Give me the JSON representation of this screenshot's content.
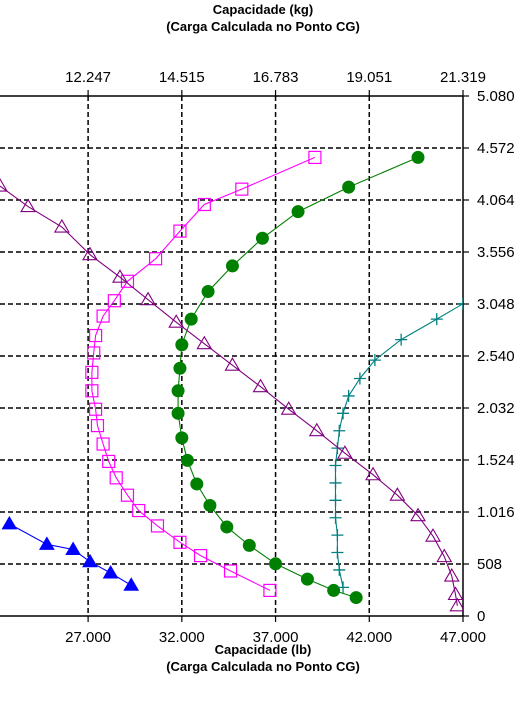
{
  "top_title": {
    "line1": "Capacidade (kg)",
    "line2": "(Carga Calculada no Ponto CG)"
  },
  "bottom_title": {
    "line1": "Capacidade (lb)",
    "line2": "(Carga Calculada no Ponto CG)"
  },
  "chart_data": {
    "type": "scatter",
    "grid": true,
    "x_bottom": {
      "label": "Capacidade (lb)\n(Carga Calculada no Ponto CG)",
      "ticks": [
        27000,
        32000,
        37000,
        42000,
        47000
      ],
      "tick_labels": [
        "27.000",
        "32.000",
        "37.000",
        "42.000",
        "47.000"
      ],
      "range": [
        22300,
        47000
      ]
    },
    "x_top": {
      "label": "Capacidade (kg)\n(Carga Calculada no Ponto CG)",
      "tick_labels": [
        "12.247",
        "14.515",
        "16.783",
        "19.051",
        "21.319"
      ]
    },
    "y_right": {
      "ticks": [
        0,
        508,
        1016,
        1524,
        2032,
        2540,
        3048,
        3556,
        4064,
        4572,
        5080
      ],
      "tick_labels": [
        "0",
        "508",
        "1.016",
        "1.524",
        "2.032",
        "2.540",
        "3.048",
        "3.556",
        "4.064",
        "4.572",
        "5.080"
      ],
      "range": [
        0,
        5080
      ]
    },
    "series": [
      {
        "color": "#0000ff",
        "marker": "filled-triangle",
        "points": [
          [
            22800,
            900
          ],
          [
            24800,
            700
          ],
          [
            26200,
            650
          ],
          [
            27100,
            530
          ],
          [
            28200,
            420
          ],
          [
            29300,
            300
          ]
        ]
      },
      {
        "color": "#ff00ff",
        "marker": "open-square",
        "points": [
          [
            39100,
            4480
          ],
          [
            35200,
            4170
          ],
          [
            33200,
            4020
          ],
          [
            31900,
            3760
          ],
          [
            30600,
            3490
          ],
          [
            29100,
            3270
          ],
          [
            28400,
            3080
          ],
          [
            27800,
            2930
          ],
          [
            27400,
            2740
          ],
          [
            27300,
            2570
          ],
          [
            27200,
            2380
          ],
          [
            27200,
            2200
          ],
          [
            27400,
            2020
          ],
          [
            27500,
            1860
          ],
          [
            27800,
            1680
          ],
          [
            28100,
            1510
          ],
          [
            28500,
            1350
          ],
          [
            29100,
            1180
          ],
          [
            29700,
            1030
          ],
          [
            30700,
            880
          ],
          [
            31900,
            720
          ],
          [
            33000,
            590
          ],
          [
            34600,
            440
          ],
          [
            36700,
            250
          ]
        ]
      },
      {
        "color": "#008000",
        "marker": "filled-circle",
        "points": [
          [
            44600,
            4480
          ],
          [
            40900,
            4190
          ],
          [
            38200,
            3950
          ],
          [
            36300,
            3690
          ],
          [
            34700,
            3420
          ],
          [
            33400,
            3170
          ],
          [
            32500,
            2900
          ],
          [
            32000,
            2650
          ],
          [
            31900,
            2420
          ],
          [
            31800,
            2200
          ],
          [
            31800,
            1980
          ],
          [
            32000,
            1740
          ],
          [
            32300,
            1520
          ],
          [
            32800,
            1290
          ],
          [
            33500,
            1080
          ],
          [
            34400,
            870
          ],
          [
            35600,
            690
          ],
          [
            37000,
            510
          ],
          [
            38700,
            360
          ],
          [
            40100,
            250
          ],
          [
            41300,
            180
          ]
        ]
      },
      {
        "color": "#008080",
        "marker": "plus",
        "points": [
          [
            47000,
            3050
          ],
          [
            45600,
            2900
          ],
          [
            43700,
            2700
          ],
          [
            42300,
            2500
          ],
          [
            41500,
            2320
          ],
          [
            40900,
            2150
          ],
          [
            40600,
            1980
          ],
          [
            40400,
            1810
          ],
          [
            40300,
            1640
          ],
          [
            40200,
            1470
          ],
          [
            40200,
            1300
          ],
          [
            40200,
            1130
          ],
          [
            40200,
            960
          ],
          [
            40300,
            790
          ],
          [
            40300,
            620
          ],
          [
            40400,
            450
          ],
          [
            40600,
            280
          ]
        ]
      },
      {
        "color": "#800080",
        "marker": "open-triangle",
        "points": [
          [
            22300,
            4200
          ],
          [
            23800,
            4000
          ],
          [
            25600,
            3800
          ],
          [
            27100,
            3530
          ],
          [
            28700,
            3310
          ],
          [
            30200,
            3090
          ],
          [
            31700,
            2870
          ],
          [
            33200,
            2660
          ],
          [
            34700,
            2450
          ],
          [
            36200,
            2240
          ],
          [
            37700,
            2020
          ],
          [
            39200,
            1810
          ],
          [
            40700,
            1590
          ],
          [
            42200,
            1380
          ],
          [
            43500,
            1180
          ],
          [
            44600,
            980
          ],
          [
            45400,
            780
          ],
          [
            46000,
            580
          ],
          [
            46400,
            390
          ],
          [
            46600,
            210
          ],
          [
            46700,
            100
          ]
        ]
      }
    ]
  }
}
